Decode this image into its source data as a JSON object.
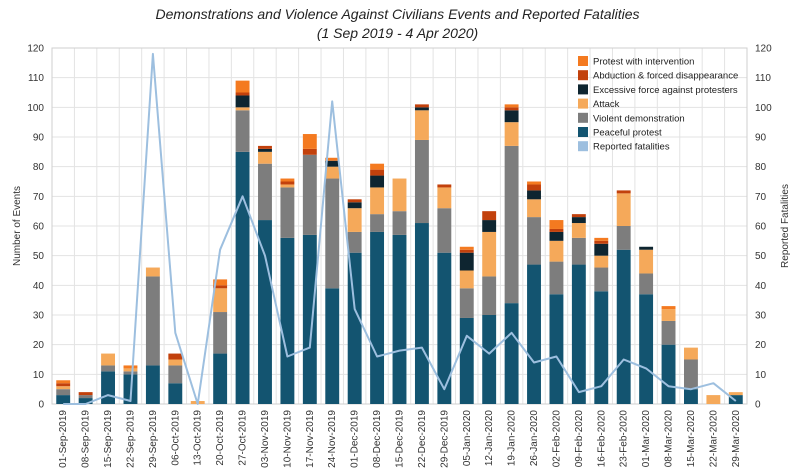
{
  "title": "Demonstrations and Violence Against Civilians Events and Reported Fatalities",
  "subtitle": "(1 Sep 2019 - 4 Apr 2020)",
  "chart_data": {
    "type": "bar",
    "stacked": true,
    "ylabel": "Number of Events",
    "y2label": "Reported Fatalities",
    "ylim": [
      0,
      120
    ],
    "y2lim": [
      0,
      120
    ],
    "yticks": [
      0,
      10,
      20,
      30,
      40,
      50,
      60,
      70,
      80,
      90,
      100,
      110,
      120
    ],
    "grid": true,
    "legend_position": "top-right",
    "categories": [
      "01-Sep-2019",
      "08-Sep-2019",
      "15-Sep-2019",
      "22-Sep-2019",
      "29-Sep-2019",
      "06-Oct-2019",
      "13-Oct-2019",
      "20-Oct-2019",
      "27-Oct-2019",
      "03-Nov-2019",
      "10-Nov-2019",
      "17-Nov-2019",
      "24-Nov-2019",
      "01-Dec-2019",
      "08-Dec-2019",
      "15-Dec-2019",
      "22-Dec-2019",
      "29-Dec-2019",
      "05-Jan-2020",
      "12-Jan-2020",
      "19-Jan-2020",
      "26-Jan-2020",
      "02-Feb-2020",
      "09-Feb-2020",
      "16-Feb-2020",
      "23-Feb-2020",
      "01-Mar-2020",
      "08-Mar-2020",
      "15-Mar-2020",
      "22-Mar-2020",
      "29-Mar-2020"
    ],
    "series": [
      {
        "name": "Peaceful protest",
        "color": "#135470",
        "values": [
          3,
          2,
          11,
          10,
          13,
          7,
          0,
          17,
          85,
          62,
          56,
          57,
          39,
          51,
          58,
          57,
          61,
          51,
          29,
          30,
          34,
          47,
          37,
          47,
          38,
          52,
          37,
          20,
          5,
          0,
          3
        ]
      },
      {
        "name": "Violent demonstration",
        "color": "#7d7d7d",
        "values": [
          2,
          1,
          2,
          1,
          30,
          6,
          0,
          14,
          14,
          19,
          17,
          27,
          37,
          7,
          6,
          8,
          28,
          15,
          10,
          13,
          53,
          16,
          11,
          9,
          8,
          8,
          7,
          8,
          10,
          0,
          0
        ]
      },
      {
        "name": "Attack",
        "color": "#f5a95a",
        "values": [
          1,
          0,
          4,
          1,
          3,
          2,
          1,
          8,
          1,
          4,
          1,
          0,
          4,
          8,
          9,
          11,
          10,
          7,
          6,
          15,
          8,
          6,
          7,
          5,
          4,
          11,
          8,
          4,
          4,
          3,
          1
        ]
      },
      {
        "name": "Excessive force against protesters",
        "color": "#0e2530",
        "values": [
          0,
          0,
          0,
          0,
          0,
          0,
          0,
          0,
          4,
          1,
          0,
          0,
          2,
          2,
          4,
          0,
          1,
          0,
          6,
          4,
          4,
          3,
          3,
          2,
          4,
          0,
          1,
          0,
          0,
          0,
          0
        ]
      },
      {
        "name": "Abduction & forced disappearance",
        "color": "#c2410c",
        "values": [
          1,
          1,
          0,
          0,
          0,
          2,
          0,
          1,
          1,
          1,
          1,
          2,
          0,
          1,
          2,
          0,
          1,
          1,
          1,
          3,
          1,
          2,
          1,
          1,
          1,
          1,
          0,
          0,
          0,
          0,
          0
        ]
      },
      {
        "name": "Protest with intervention",
        "color": "#f47a20",
        "values": [
          1,
          0,
          0,
          1,
          0,
          0,
          0,
          2,
          4,
          0,
          1,
          5,
          1,
          0,
          2,
          0,
          0,
          0,
          1,
          0,
          1,
          1,
          3,
          0,
          1,
          0,
          0,
          1,
          0,
          0,
          0
        ]
      }
    ],
    "line": {
      "name": "Reported fatalities",
      "color": "#9dbfdf",
      "axis": "right",
      "values": [
        0,
        0,
        3,
        1,
        118,
        24,
        0,
        52,
        70,
        50,
        16,
        19,
        102,
        32,
        16,
        18,
        19,
        5,
        23,
        17,
        24,
        14,
        16,
        4,
        6,
        15,
        12,
        6,
        5,
        7,
        1
      ]
    }
  }
}
